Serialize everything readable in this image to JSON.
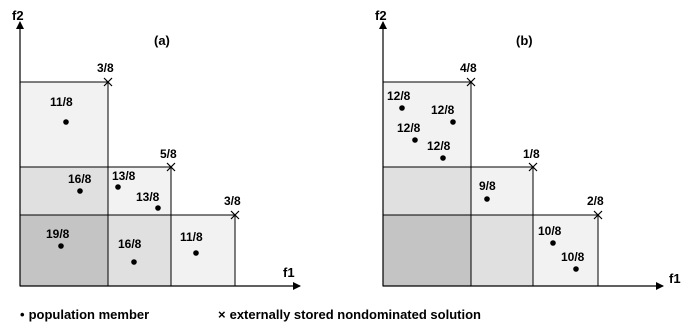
{
  "colors": {
    "light": "#f2f2f2",
    "medium": "#e0e0e0",
    "dark": "#c4c4c4",
    "stroke": "#000000"
  },
  "axes": {
    "y_label": "f2",
    "x_label": "f1"
  },
  "panel_a": {
    "label": "(a)",
    "cross_labels": [
      "3/8",
      "5/8",
      "3/8"
    ],
    "point_labels": [
      "11/8",
      "16/8",
      "13/8",
      "13/8",
      "19/8",
      "16/8",
      "11/8"
    ]
  },
  "panel_b": {
    "label": "(b)",
    "cross_labels": [
      "4/8",
      "1/8",
      "2/8"
    ],
    "point_labels": [
      "12/8",
      "12/8",
      "12/8",
      "12/8",
      "9/8",
      "10/8",
      "10/8"
    ]
  },
  "legend": {
    "population_symbol": "•",
    "population_label": "population member",
    "external_symbol": "×",
    "external_label": "externally stored nondominated solution"
  }
}
